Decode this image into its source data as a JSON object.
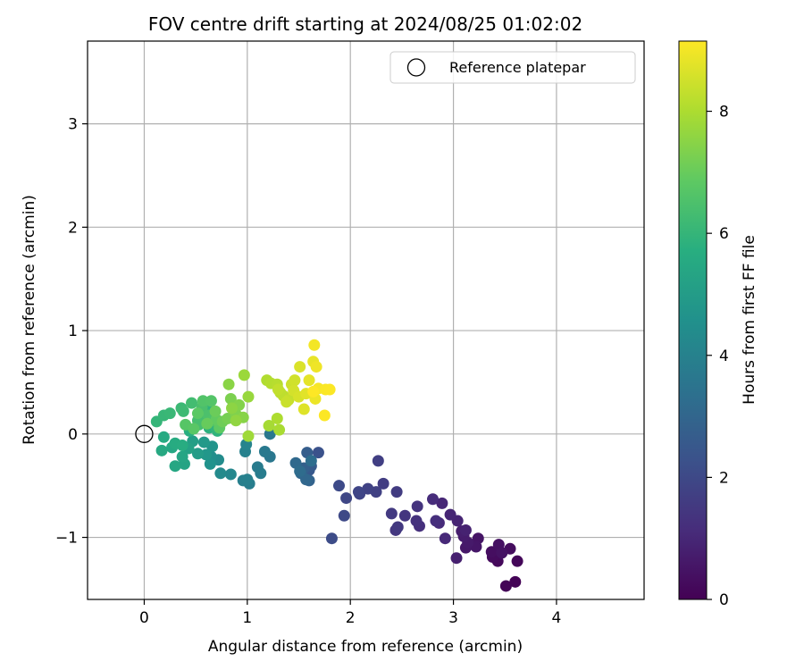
{
  "chart_data": {
    "type": "scatter",
    "title": "FOV centre drift starting at 2024/08/25 01:02:02",
    "xlabel": "Angular distance from reference (arcmin)",
    "ylabel": "Rotation from reference (arcmin)",
    "xlim": [
      -0.55,
      4.85
    ],
    "ylim": [
      -1.6,
      3.8
    ],
    "xticks": [
      0,
      1,
      2,
      3,
      4
    ],
    "yticks": [
      -1,
      0,
      1,
      2,
      3
    ],
    "xtick_labels": [
      "0",
      "1",
      "2",
      "3",
      "4"
    ],
    "ytick_labels": [
      "−1",
      "0",
      "1",
      "2",
      "3"
    ],
    "grid": true,
    "legend": {
      "position": "top-right",
      "entries": [
        {
          "label": "Reference platepar",
          "marker": "open-circle"
        }
      ]
    },
    "reference_point": {
      "x": 0,
      "y": 0
    },
    "colorbar": {
      "label": "Hours from first FF file",
      "range": [
        0,
        9.15
      ],
      "ticks": [
        0,
        2,
        4,
        6,
        8
      ],
      "tick_labels": [
        "0",
        "2",
        "4",
        "6",
        "8"
      ],
      "colormap": "viridis"
    },
    "points": [
      {
        "x": 3.6,
        "y": -1.43,
        "t": 0.05
      },
      {
        "x": 3.51,
        "y": -1.47,
        "t": 0.1
      },
      {
        "x": 3.62,
        "y": -1.23,
        "t": 0.15
      },
      {
        "x": 3.43,
        "y": -1.23,
        "t": 0.2
      },
      {
        "x": 3.38,
        "y": -1.19,
        "t": 0.25
      },
      {
        "x": 3.55,
        "y": -1.11,
        "t": 0.3
      },
      {
        "x": 3.37,
        "y": -1.14,
        "t": 0.35
      },
      {
        "x": 3.44,
        "y": -1.07,
        "t": 0.4
      },
      {
        "x": 3.47,
        "y": -1.15,
        "t": 0.45
      },
      {
        "x": 3.24,
        "y": -1.01,
        "t": 0.5
      },
      {
        "x": 3.22,
        "y": -1.09,
        "t": 0.55
      },
      {
        "x": 3.12,
        "y": -1.1,
        "t": 0.6
      },
      {
        "x": 3.14,
        "y": -1.05,
        "t": 0.65
      },
      {
        "x": 3.1,
        "y": -0.99,
        "t": 0.7
      },
      {
        "x": 3.08,
        "y": -0.94,
        "t": 0.75
      },
      {
        "x": 3.03,
        "y": -1.2,
        "t": 0.8
      },
      {
        "x": 3.12,
        "y": -0.93,
        "t": 0.85
      },
      {
        "x": 3.04,
        "y": -0.84,
        "t": 0.9
      },
      {
        "x": 2.97,
        "y": -0.78,
        "t": 0.95
      },
      {
        "x": 2.89,
        "y": -0.67,
        "t": 1.0
      },
      {
        "x": 2.92,
        "y": -1.01,
        "t": 1.05
      },
      {
        "x": 2.86,
        "y": -0.86,
        "t": 1.1
      },
      {
        "x": 2.8,
        "y": -0.63,
        "t": 1.15
      },
      {
        "x": 2.83,
        "y": -0.84,
        "t": 1.2
      },
      {
        "x": 2.67,
        "y": -0.89,
        "t": 1.25
      },
      {
        "x": 2.64,
        "y": -0.84,
        "t": 1.3
      },
      {
        "x": 2.65,
        "y": -0.7,
        "t": 1.35
      },
      {
        "x": 2.53,
        "y": -0.79,
        "t": 1.4
      },
      {
        "x": 2.44,
        "y": -0.93,
        "t": 1.45
      },
      {
        "x": 2.46,
        "y": -0.9,
        "t": 1.5
      },
      {
        "x": 2.4,
        "y": -0.77,
        "t": 1.55
      },
      {
        "x": 2.45,
        "y": -0.56,
        "t": 1.6
      },
      {
        "x": 2.32,
        "y": -0.48,
        "t": 1.65
      },
      {
        "x": 2.27,
        "y": -0.26,
        "t": 1.7
      },
      {
        "x": 2.25,
        "y": -0.56,
        "t": 1.75
      },
      {
        "x": 2.17,
        "y": -0.53,
        "t": 1.8
      },
      {
        "x": 2.09,
        "y": -0.58,
        "t": 1.85
      },
      {
        "x": 2.08,
        "y": -0.56,
        "t": 1.9
      },
      {
        "x": 1.96,
        "y": -0.62,
        "t": 1.95
      },
      {
        "x": 1.94,
        "y": -0.79,
        "t": 2.0
      },
      {
        "x": 1.89,
        "y": -0.5,
        "t": 2.05
      },
      {
        "x": 1.82,
        "y": -1.01,
        "t": 2.1
      },
      {
        "x": 1.69,
        "y": -0.18,
        "t": 2.3
      },
      {
        "x": 1.6,
        "y": -0.35,
        "t": 2.5
      },
      {
        "x": 1.62,
        "y": -0.31,
        "t": 2.6
      },
      {
        "x": 1.58,
        "y": -0.18,
        "t": 2.7
      },
      {
        "x": 1.55,
        "y": -0.33,
        "t": 2.8
      },
      {
        "x": 1.6,
        "y": -0.45,
        "t": 2.9
      },
      {
        "x": 1.52,
        "y": -0.38,
        "t": 3.0
      },
      {
        "x": 1.57,
        "y": -0.44,
        "t": 3.05
      },
      {
        "x": 1.47,
        "y": -0.28,
        "t": 3.1
      },
      {
        "x": 1.51,
        "y": -0.36,
        "t": 3.2
      },
      {
        "x": 1.62,
        "y": -0.26,
        "t": 3.3
      },
      {
        "x": 1.22,
        "y": -0.22,
        "t": 3.6
      },
      {
        "x": 1.22,
        "y": 0.0,
        "t": 3.65
      },
      {
        "x": 1.17,
        "y": -0.17,
        "t": 3.7
      },
      {
        "x": 1.1,
        "y": -0.32,
        "t": 3.75
      },
      {
        "x": 1.13,
        "y": -0.38,
        "t": 3.8
      },
      {
        "x": 1.02,
        "y": -0.48,
        "t": 3.85
      },
      {
        "x": 0.96,
        "y": -0.45,
        "t": 3.9
      },
      {
        "x": 1.0,
        "y": -0.44,
        "t": 3.95
      },
      {
        "x": 0.98,
        "y": -0.17,
        "t": 4.0
      },
      {
        "x": 0.99,
        "y": -0.1,
        "t": 4.1
      },
      {
        "x": 0.84,
        "y": -0.39,
        "t": 4.2
      },
      {
        "x": 0.74,
        "y": -0.38,
        "t": 4.3
      },
      {
        "x": 0.72,
        "y": -0.25,
        "t": 4.4
      },
      {
        "x": 0.65,
        "y": -0.22,
        "t": 4.5
      },
      {
        "x": 0.64,
        "y": -0.29,
        "t": 4.6
      },
      {
        "x": 0.66,
        "y": -0.12,
        "t": 4.7
      },
      {
        "x": 0.6,
        "y": -0.2,
        "t": 4.8
      },
      {
        "x": 0.58,
        "y": -0.08,
        "t": 4.9
      },
      {
        "x": 0.52,
        "y": -0.19,
        "t": 5.0
      },
      {
        "x": 0.47,
        "y": -0.07,
        "t": 5.1
      },
      {
        "x": 0.43,
        "y": -0.14,
        "t": 5.2
      },
      {
        "x": 0.39,
        "y": -0.29,
        "t": 5.3
      },
      {
        "x": 0.37,
        "y": -0.22,
        "t": 5.35
      },
      {
        "x": 0.3,
        "y": -0.31,
        "t": 5.4
      },
      {
        "x": 0.27,
        "y": -0.13,
        "t": 5.45
      },
      {
        "x": 0.17,
        "y": -0.16,
        "t": 5.5
      },
      {
        "x": 0.19,
        "y": -0.03,
        "t": 5.55
      },
      {
        "x": 0.3,
        "y": -0.09,
        "t": 5.6
      },
      {
        "x": 0.37,
        "y": -0.11,
        "t": 5.65
      },
      {
        "x": 0.44,
        "y": 0.03,
        "t": 5.7
      },
      {
        "x": 0.55,
        "y": 0.14,
        "t": 5.75
      },
      {
        "x": 0.63,
        "y": 0.06,
        "t": 5.8
      },
      {
        "x": 0.71,
        "y": 0.03,
        "t": 5.85
      },
      {
        "x": 0.62,
        "y": 0.23,
        "t": 5.9
      },
      {
        "x": 0.7,
        "y": 0.05,
        "t": 5.95
      },
      {
        "x": 0.12,
        "y": 0.12,
        "t": 6.0
      },
      {
        "x": 0.19,
        "y": 0.18,
        "t": 6.05
      },
      {
        "x": 0.25,
        "y": 0.2,
        "t": 6.1
      },
      {
        "x": 0.36,
        "y": 0.25,
        "t": 6.15
      },
      {
        "x": 0.38,
        "y": 0.22,
        "t": 6.2
      },
      {
        "x": 0.46,
        "y": 0.3,
        "t": 6.3
      },
      {
        "x": 0.52,
        "y": 0.13,
        "t": 6.35
      },
      {
        "x": 0.53,
        "y": 0.09,
        "t": 6.4
      },
      {
        "x": 0.56,
        "y": 0.26,
        "t": 6.45
      },
      {
        "x": 0.62,
        "y": 0.18,
        "t": 6.5
      },
      {
        "x": 0.66,
        "y": 0.13,
        "t": 6.55
      },
      {
        "x": 0.57,
        "y": 0.32,
        "t": 6.6
      },
      {
        "x": 0.65,
        "y": 0.32,
        "t": 6.65
      },
      {
        "x": 0.4,
        "y": 0.09,
        "t": 6.7
      },
      {
        "x": 0.48,
        "y": 0.05,
        "t": 6.75
      },
      {
        "x": 0.52,
        "y": 0.2,
        "t": 6.8
      },
      {
        "x": 0.73,
        "y": 0.06,
        "t": 6.85
      },
      {
        "x": 0.7,
        "y": 0.14,
        "t": 6.9
      },
      {
        "x": 0.61,
        "y": 0.1,
        "t": 7.0
      },
      {
        "x": 0.69,
        "y": 0.22,
        "t": 7.05
      },
      {
        "x": 0.76,
        "y": 0.12,
        "t": 7.1
      },
      {
        "x": 0.81,
        "y": 0.15,
        "t": 7.2
      },
      {
        "x": 0.84,
        "y": 0.34,
        "t": 7.3
      },
      {
        "x": 0.89,
        "y": 0.19,
        "t": 7.35
      },
      {
        "x": 0.92,
        "y": 0.28,
        "t": 7.4
      },
      {
        "x": 0.96,
        "y": 0.16,
        "t": 7.45
      },
      {
        "x": 0.82,
        "y": 0.48,
        "t": 7.5
      },
      {
        "x": 0.85,
        "y": 0.25,
        "t": 7.55
      },
      {
        "x": 0.89,
        "y": 0.13,
        "t": 7.6
      },
      {
        "x": 1.01,
        "y": 0.36,
        "t": 7.7
      },
      {
        "x": 0.97,
        "y": 0.57,
        "t": 7.75
      },
      {
        "x": 1.01,
        "y": -0.02,
        "t": 7.8
      },
      {
        "x": 1.21,
        "y": 0.08,
        "t": 7.9
      },
      {
        "x": 1.31,
        "y": 0.04,
        "t": 7.95
      },
      {
        "x": 1.29,
        "y": 0.15,
        "t": 8.0
      },
      {
        "x": 1.19,
        "y": 0.52,
        "t": 8.05
      },
      {
        "x": 1.23,
        "y": 0.49,
        "t": 8.1
      },
      {
        "x": 1.29,
        "y": 0.48,
        "t": 8.15
      },
      {
        "x": 1.32,
        "y": 0.4,
        "t": 8.2
      },
      {
        "x": 1.35,
        "y": 0.37,
        "t": 8.25
      },
      {
        "x": 1.3,
        "y": 0.43,
        "t": 8.3
      },
      {
        "x": 1.4,
        "y": 0.33,
        "t": 8.35
      },
      {
        "x": 1.38,
        "y": 0.31,
        "t": 8.4
      },
      {
        "x": 1.43,
        "y": 0.48,
        "t": 8.45
      },
      {
        "x": 1.46,
        "y": 0.52,
        "t": 8.5
      },
      {
        "x": 1.45,
        "y": 0.42,
        "t": 8.55
      },
      {
        "x": 1.5,
        "y": 0.36,
        "t": 8.6
      },
      {
        "x": 1.51,
        "y": 0.65,
        "t": 8.65
      },
      {
        "x": 1.55,
        "y": 0.24,
        "t": 8.7
      },
      {
        "x": 1.57,
        "y": 0.39,
        "t": 8.75
      },
      {
        "x": 1.6,
        "y": 0.52,
        "t": 8.8
      },
      {
        "x": 1.64,
        "y": 0.7,
        "t": 8.85
      },
      {
        "x": 1.66,
        "y": 0.34,
        "t": 8.9
      },
      {
        "x": 1.67,
        "y": 0.65,
        "t": 8.95
      },
      {
        "x": 1.65,
        "y": 0.86,
        "t": 9.0
      },
      {
        "x": 1.69,
        "y": 0.44,
        "t": 9.05
      },
      {
        "x": 1.76,
        "y": 0.43,
        "t": 9.1
      },
      {
        "x": 1.8,
        "y": 0.43,
        "t": 9.12
      },
      {
        "x": 1.75,
        "y": 0.18,
        "t": 9.14
      },
      {
        "x": 1.64,
        "y": 0.41,
        "t": 9.15
      }
    ]
  }
}
